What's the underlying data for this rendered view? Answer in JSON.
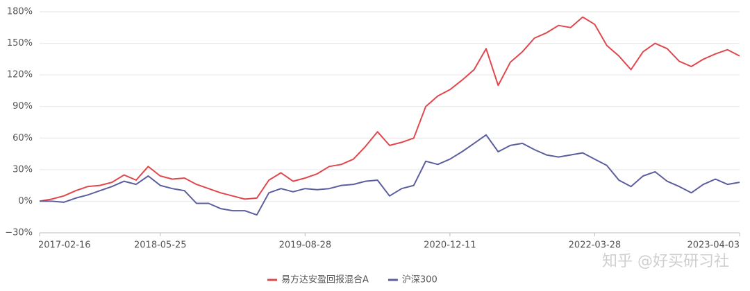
{
  "chart_data": {
    "type": "line",
    "categories": [
      "2017-02-16",
      null,
      null,
      null,
      null,
      null,
      null,
      null,
      null,
      null,
      "2018-05-25",
      null,
      null,
      null,
      null,
      null,
      null,
      null,
      null,
      null,
      null,
      null,
      "2019-08-28",
      null,
      null,
      null,
      null,
      null,
      null,
      null,
      null,
      null,
      null,
      null,
      "2020-12-11",
      null,
      null,
      null,
      null,
      null,
      null,
      null,
      null,
      null,
      null,
      null,
      "2022-03-28",
      null,
      null,
      null,
      null,
      null,
      null,
      null,
      null,
      null,
      null,
      null,
      "2023-04-03"
    ],
    "series": [
      {
        "name": "易方达安盈回报混合A",
        "color": "#e0474c",
        "values": [
          0,
          2,
          5,
          10,
          14,
          15,
          18,
          25,
          20,
          33,
          24,
          21,
          22,
          16,
          12,
          8,
          5,
          2,
          3,
          20,
          27,
          19,
          22,
          26,
          33,
          35,
          40,
          52,
          66,
          53,
          56,
          60,
          90,
          100,
          106,
          115,
          125,
          145,
          110,
          132,
          142,
          155,
          160,
          167,
          165,
          175,
          168,
          148,
          138,
          125,
          142,
          150,
          145,
          133,
          128,
          135,
          140,
          144,
          138
        ]
      },
      {
        "name": "沪深300",
        "color": "#5b5e9e",
        "values": [
          0,
          0,
          -1,
          3,
          6,
          10,
          14,
          19,
          16,
          24,
          15,
          12,
          10,
          -2,
          -2,
          -7,
          -9,
          -9,
          -13,
          8,
          12,
          9,
          12,
          11,
          12,
          15,
          16,
          19,
          20,
          5,
          12,
          15,
          38,
          35,
          40,
          47,
          55,
          63,
          47,
          53,
          55,
          49,
          44,
          42,
          44,
          46,
          40,
          34,
          20,
          14,
          24,
          28,
          19,
          14,
          8,
          16,
          21,
          16,
          18
        ]
      }
    ],
    "ylim": [
      -30,
      180
    ],
    "yticks": [
      {
        "value": -30,
        "label": "−30%"
      },
      {
        "value": 0,
        "label": "0%"
      },
      {
        "value": 30,
        "label": "30%"
      },
      {
        "value": 60,
        "label": "60%"
      },
      {
        "value": 90,
        "label": "90%"
      },
      {
        "value": 120,
        "label": "120%"
      },
      {
        "value": 150,
        "label": "150%"
      },
      {
        "value": 180,
        "label": "180%"
      }
    ],
    "grid": true,
    "legend": "bottom",
    "watermark": "知乎 @好买研习社"
  }
}
